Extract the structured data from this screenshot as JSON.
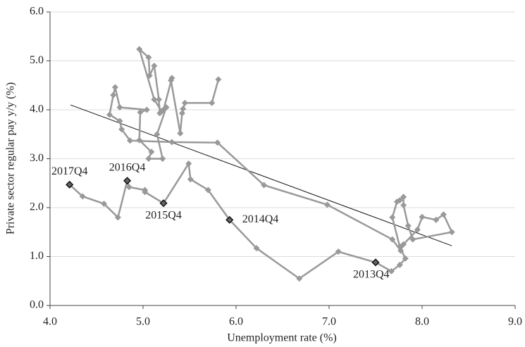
{
  "chart_data": {
    "type": "line",
    "xlabel": "Unemployment rate (%)",
    "ylabel": "Private sector regular pay y/y (%)",
    "x": [
      5.81,
      5.74,
      5.45,
      5.43,
      5.42,
      5.4,
      5.3,
      5.31,
      5.22,
      5.18,
      5.17,
      5.12,
      5.07,
      5.06,
      4.96,
      5.12,
      5.2,
      5.25,
      5.15,
      5.21,
      5.06,
      5.09,
      4.96,
      4.97,
      5.04,
      4.75,
      4.7,
      4.68,
      4.64,
      4.75,
      4.77,
      4.86,
      5.31,
      5.8,
      6.3,
      6.98,
      7.68,
      7.77,
      7.8,
      7.95,
      8.0,
      8.15,
      8.23,
      8.32,
      7.9,
      7.85,
      7.8,
      7.8,
      7.76,
      7.73,
      7.68,
      7.76,
      7.82,
      7.76,
      7.67,
      7.5,
      7.1,
      6.68,
      6.22,
      5.93,
      5.7,
      5.51,
      5.49,
      5.22,
      5.02,
      5.02,
      4.85,
      4.83,
      4.73,
      4.58,
      4.35,
      4.21
    ],
    "values": [
      4.62,
      4.14,
      4.14,
      4.02,
      3.93,
      3.52,
      4.6,
      4.65,
      4.0,
      3.93,
      4.21,
      4.9,
      4.7,
      5.07,
      5.24,
      4.21,
      3.97,
      4.05,
      3.5,
      3.0,
      3.0,
      3.14,
      3.38,
      3.95,
      4.0,
      4.05,
      4.46,
      4.3,
      3.9,
      3.77,
      3.6,
      3.37,
      3.34,
      3.33,
      2.46,
      2.06,
      1.35,
      1.12,
      1.25,
      1.55,
      1.81,
      1.75,
      1.86,
      1.5,
      1.35,
      1.63,
      2.05,
      2.22,
      2.15,
      2.12,
      1.8,
      1.2,
      0.96,
      0.83,
      0.7,
      0.88,
      1.1,
      0.55,
      1.17,
      1.75,
      2.36,
      2.58,
      2.9,
      2.09,
      2.32,
      2.36,
      2.42,
      2.55,
      1.8,
      2.08,
      2.23,
      2.47
    ],
    "color": "#999999",
    "highlights": {
      "x": [
        7.5,
        5.93,
        5.22,
        4.83,
        4.21
      ],
      "values": [
        0.88,
        1.75,
        2.09,
        2.55,
        2.47
      ],
      "labels": [
        "2013Q4",
        "2014Q4",
        "2015Q4",
        "2016Q4",
        "2017Q4"
      ]
    },
    "trendline": {
      "x": [
        4.22,
        8.32
      ],
      "values": [
        4.1,
        1.22
      ]
    },
    "xlim": [
      4,
      9
    ],
    "ylim": [
      0,
      6
    ],
    "xticks": [
      {
        "value": 4,
        "label": "4.0"
      },
      {
        "value": 5,
        "label": "5.0"
      },
      {
        "value": 6,
        "label": "6.0"
      },
      {
        "value": 7,
        "label": "7.0"
      },
      {
        "value": 8,
        "label": "8.0"
      },
      {
        "value": 9,
        "label": "9.0"
      }
    ],
    "yticks": [
      {
        "value": 0,
        "label": "0.0"
      },
      {
        "value": 1,
        "label": "1.0"
      },
      {
        "value": 2,
        "label": "2.0"
      },
      {
        "value": 3,
        "label": "3.0"
      },
      {
        "value": 4,
        "label": "4.0"
      },
      {
        "value": 5,
        "label": "5.0"
      },
      {
        "value": 6,
        "label": "6.0"
      }
    ],
    "grid": true
  }
}
